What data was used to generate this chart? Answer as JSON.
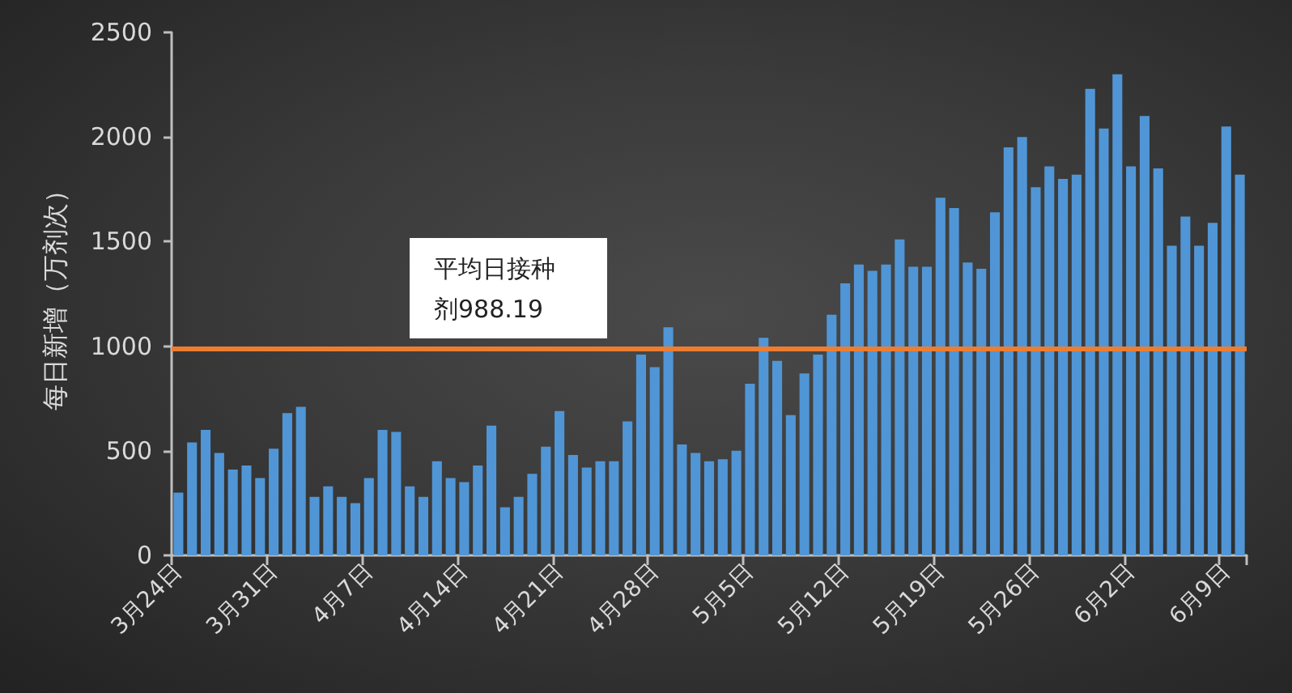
{
  "chart_data": {
    "type": "bar",
    "ylabel": "每日新增（万剂次）",
    "categories": [
      "3月24日",
      null,
      null,
      null,
      null,
      null,
      null,
      "3月31日",
      null,
      null,
      null,
      null,
      null,
      null,
      "4月7日",
      null,
      null,
      null,
      null,
      null,
      null,
      "4月14日",
      null,
      null,
      null,
      null,
      null,
      null,
      "4月21日",
      null,
      null,
      null,
      null,
      null,
      null,
      "4月28日",
      null,
      null,
      null,
      null,
      null,
      null,
      "5月5日",
      null,
      null,
      null,
      null,
      null,
      null,
      "5月12日",
      null,
      null,
      null,
      null,
      null,
      null,
      "5月19日",
      null,
      null,
      null,
      null,
      null,
      null,
      "5月26日",
      null,
      null,
      null,
      null,
      null,
      null,
      "6月2日",
      null,
      null,
      null,
      null,
      null,
      null,
      "6月9日",
      null
    ],
    "values": [
      300,
      540,
      600,
      490,
      410,
      430,
      370,
      510,
      680,
      710,
      280,
      330,
      280,
      250,
      370,
      600,
      590,
      330,
      280,
      450,
      370,
      350,
      430,
      620,
      230,
      280,
      390,
      520,
      690,
      480,
      420,
      450,
      450,
      640,
      960,
      900,
      1090,
      530,
      490,
      450,
      460,
      500,
      820,
      1040,
      930,
      670,
      870,
      960,
      1150,
      1300,
      1390,
      1360,
      1390,
      1510,
      1380,
      1380,
      1710,
      1660,
      1400,
      1370,
      1640,
      1950,
      2000,
      1760,
      1860,
      1800,
      1820,
      2230,
      2040,
      2300,
      1860,
      2100,
      1850,
      1480,
      1620,
      1480,
      1590,
      2050,
      1820
    ],
    "color": "#5096d6",
    "ylim": [
      0,
      2500
    ],
    "yticks": [
      0,
      500,
      1000,
      1500,
      2000,
      2500
    ],
    "ref_lines": [
      {
        "axis": "y",
        "value": 988.19,
        "label": "平均日接种剂988.19",
        "color": "#ed7d31"
      }
    ]
  }
}
